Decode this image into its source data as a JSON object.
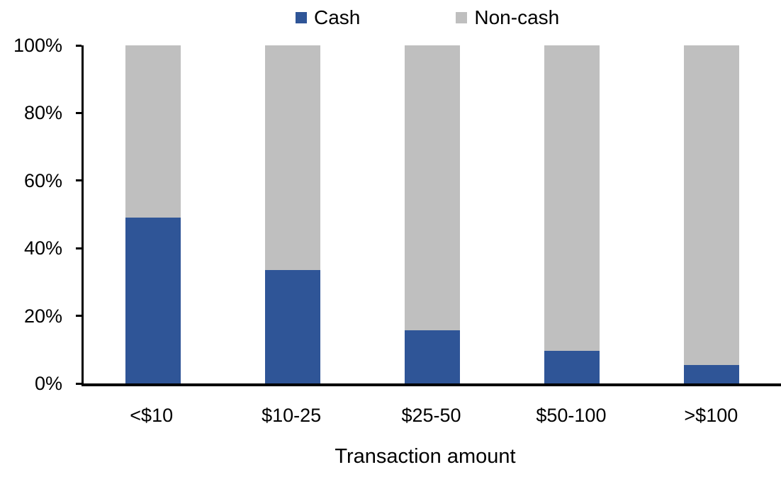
{
  "legend": {
    "items": [
      {
        "label": "Cash",
        "color": "#2F5597"
      },
      {
        "label": "Non-cash",
        "color": "#BFBFBF"
      }
    ]
  },
  "chart_data": {
    "type": "bar",
    "stacked": true,
    "orientation": "vertical",
    "title": "",
    "xlabel": "Transaction amount",
    "ylabel": "",
    "categories": [
      "<$10",
      "$10-25",
      "$25-50",
      "$50-100",
      ">$100"
    ],
    "series": [
      {
        "name": "Cash",
        "color": "#2F5597",
        "values": [
          49,
          33.5,
          15.7,
          9.7,
          5.5
        ]
      },
      {
        "name": "Non-cash",
        "color": "#BFBFBF",
        "values": [
          51,
          66.5,
          84.3,
          90.3,
          94.5
        ]
      }
    ],
    "y_ticks": [
      0,
      20,
      40,
      60,
      80,
      100
    ],
    "y_tick_labels": [
      "0%",
      "20%",
      "40%",
      "60%",
      "80%",
      "100%"
    ],
    "ylim": [
      0,
      100
    ],
    "grid": false,
    "legend_position": "top-center",
    "axis_color": "#000000",
    "background_color": "#FFFFFF"
  }
}
